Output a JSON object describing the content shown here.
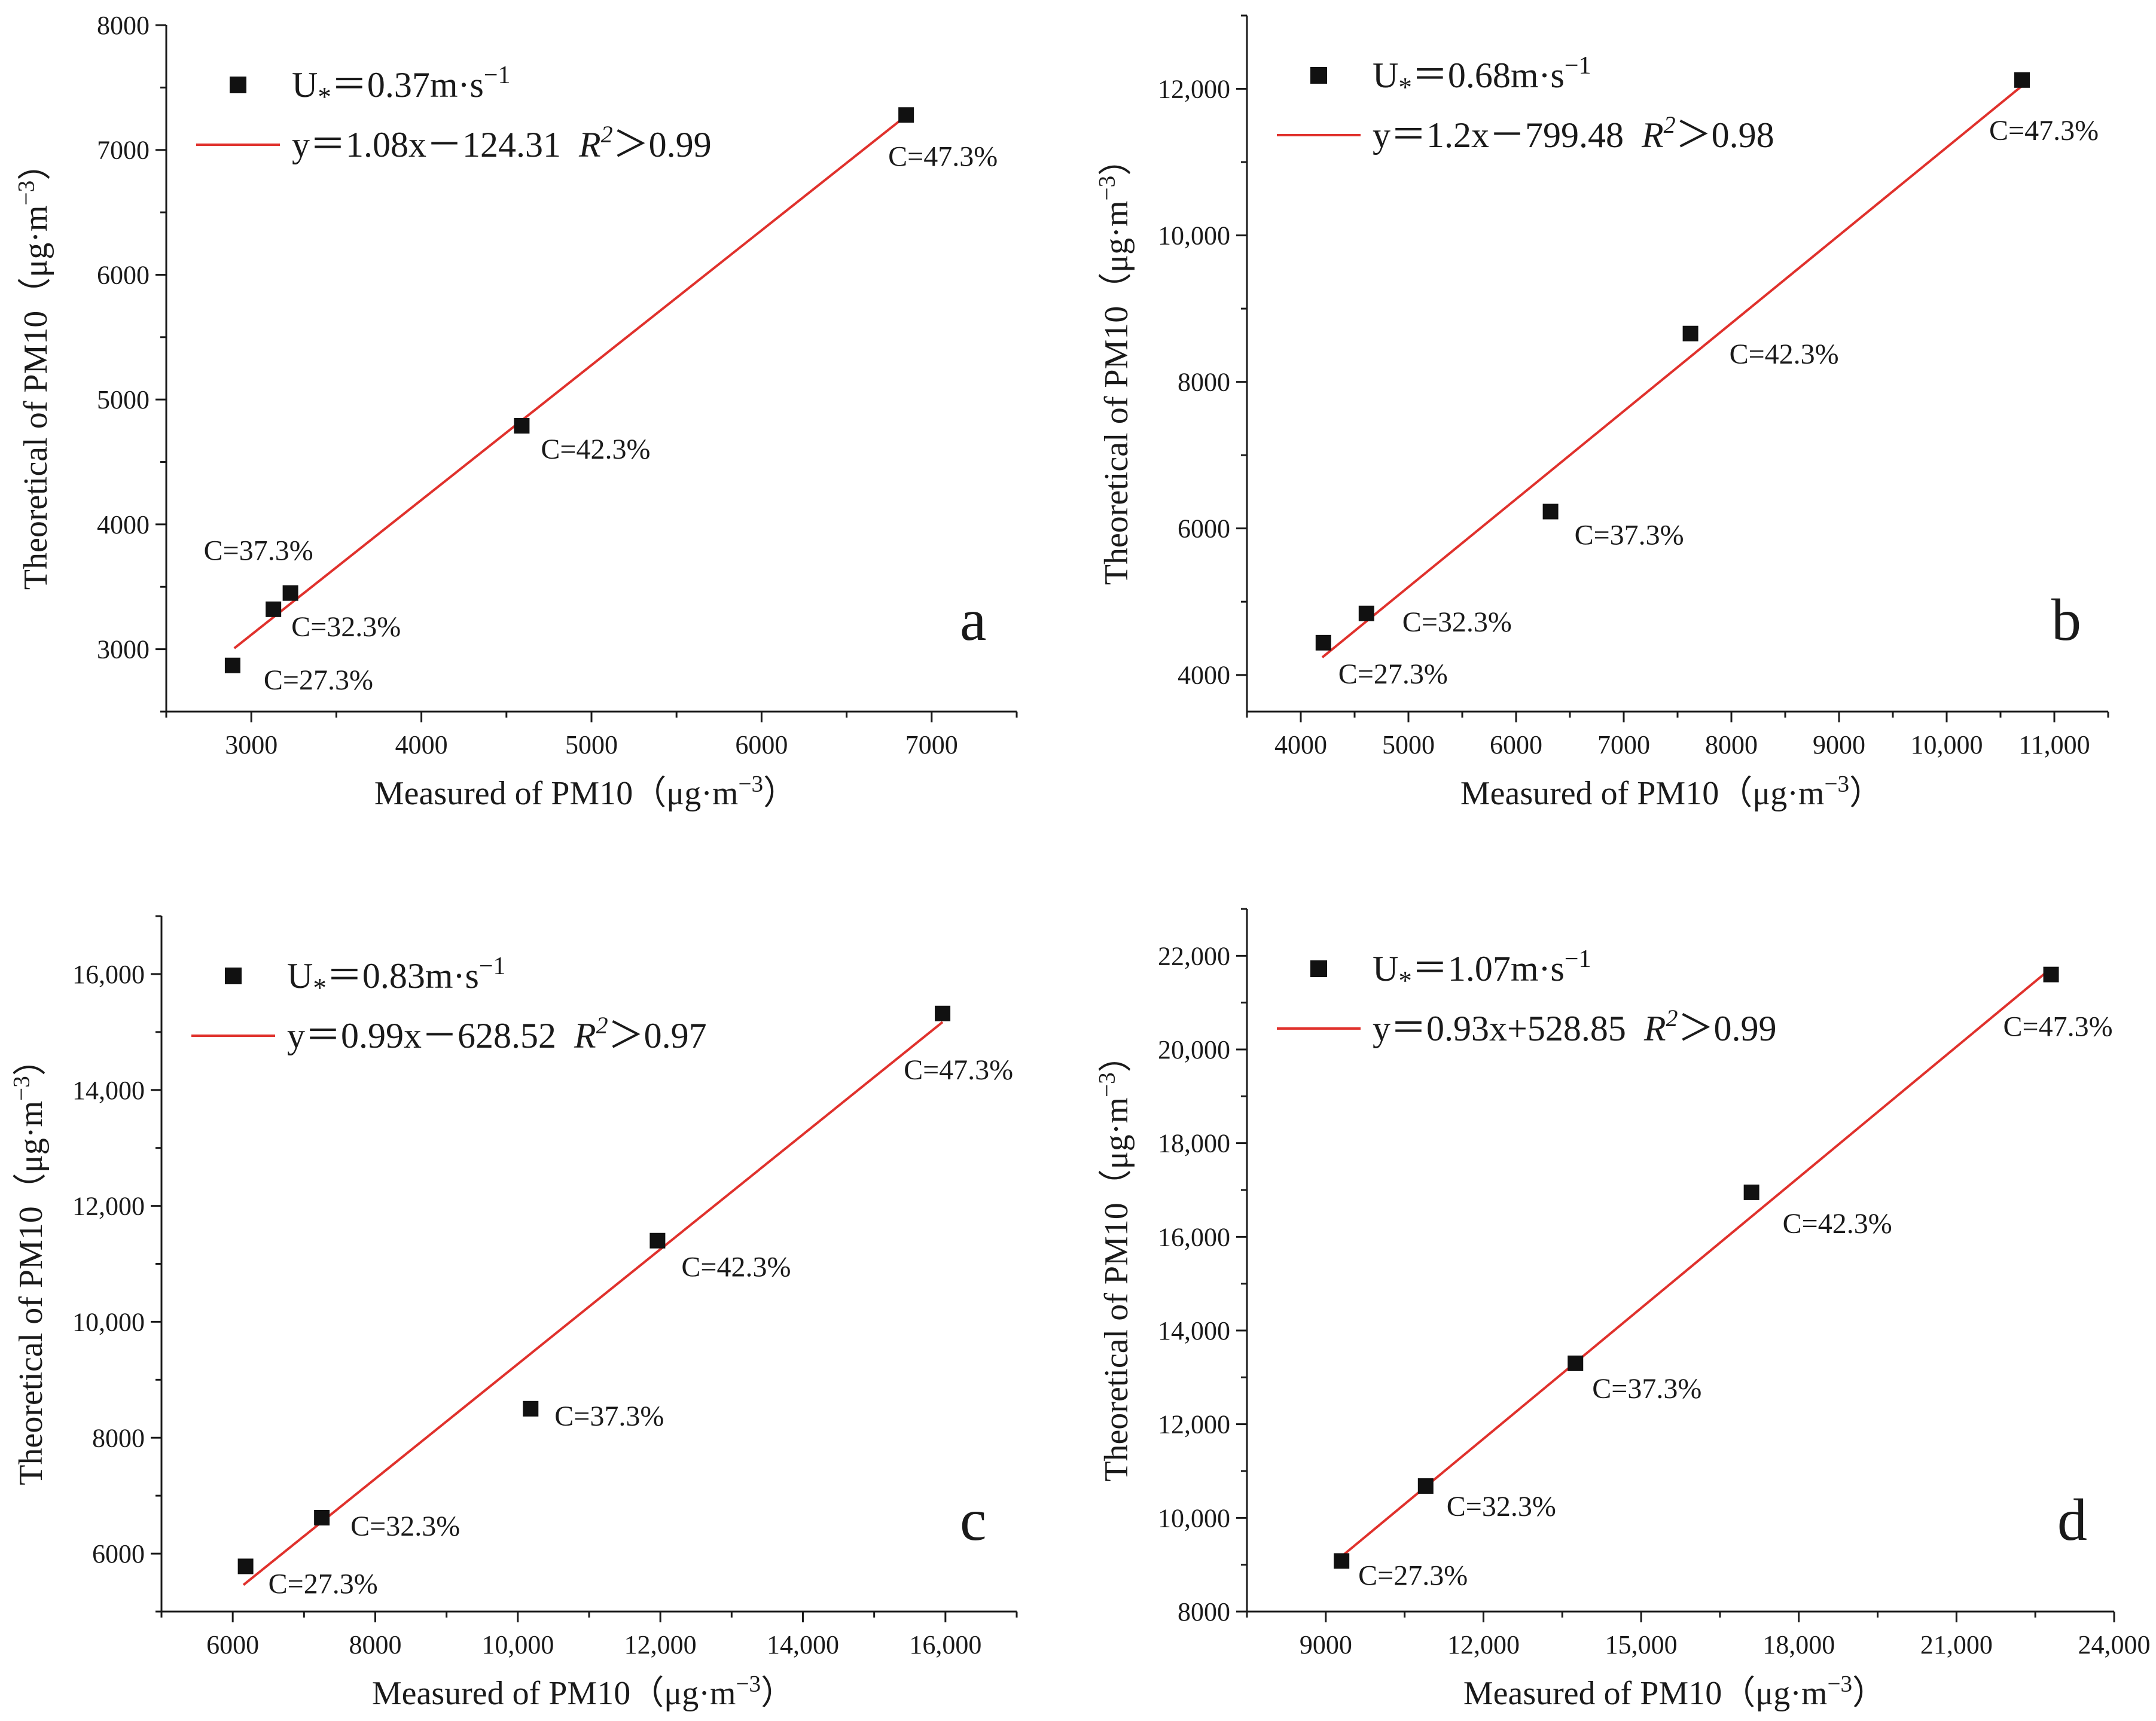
{
  "chart_data": [
    {
      "type": "scatter",
      "panel": "a",
      "xlabel": "Measured of PM10（μg·m⁻³）",
      "ylabel": "Theoretical of PM10（μg·m⁻³）",
      "xlim": [
        2500,
        7500
      ],
      "ylim": [
        2500,
        8000
      ],
      "x_ticks": [
        3000,
        4000,
        5000,
        6000,
        7000
      ],
      "x_tick_labels": [
        "3000",
        "4000",
        "5000",
        "6000",
        "7000"
      ],
      "y_ticks": [
        3000,
        4000,
        5000,
        6000,
        7000,
        8000
      ],
      "y_tick_labels": [
        "3000",
        "4000",
        "5000",
        "6000",
        "7000",
        "8000"
      ],
      "points": [
        {
          "x": 2890,
          "y": 2870,
          "label": "C=27.3%"
        },
        {
          "x": 3130,
          "y": 3320,
          "label": "C=32.3%"
        },
        {
          "x": 3230,
          "y": 3450,
          "label": "C=37.3%"
        },
        {
          "x": 4590,
          "y": 4790,
          "label": "C=42.3%"
        },
        {
          "x": 6850,
          "y": 7280,
          "label": "C=47.3%"
        }
      ],
      "fit": {
        "slope": 1.08,
        "intercept": -124.31,
        "x_range": [
          2900,
          6850
        ]
      },
      "legend": {
        "position": "top-left",
        "marker_label": "U*＝0.37m·s⁻¹",
        "line_label": "y＝1.08x－124.31",
        "r2_label": "R²＞0.99"
      }
    },
    {
      "type": "scatter",
      "panel": "b",
      "xlabel": "Measured of PM10（μg·m⁻³）",
      "ylabel": "Theoretical of PM10（μg·m⁻³）",
      "xlim": [
        3500,
        11500
      ],
      "ylim": [
        3500,
        13000
      ],
      "x_ticks": [
        4000,
        5000,
        6000,
        7000,
        8000,
        9000,
        10000,
        11000
      ],
      "x_tick_labels": [
        "4000",
        "5000",
        "6000",
        "7000",
        "8000",
        "9000",
        "10,000",
        "11,000"
      ],
      "y_ticks": [
        4000,
        6000,
        8000,
        10000,
        12000
      ],
      "y_tick_labels": [
        "4000",
        "6000",
        "8000",
        "10,000",
        "12,000"
      ],
      "points": [
        {
          "x": 4210,
          "y": 4440,
          "label": "C=27.3%"
        },
        {
          "x": 4610,
          "y": 4840,
          "label": "C=32.3%"
        },
        {
          "x": 6320,
          "y": 6230,
          "label": "C=37.3%"
        },
        {
          "x": 7620,
          "y": 8660,
          "label": "C=42.3%"
        },
        {
          "x": 10700,
          "y": 12120,
          "label": "C=47.3%"
        }
      ],
      "fit": {
        "slope": 1.2,
        "intercept": -799.48,
        "x_range": [
          4200,
          10700
        ]
      },
      "legend": {
        "position": "top-left",
        "marker_label": "U*＝0.68m·s⁻¹",
        "line_label": "y＝1.2x－799.48",
        "r2_label": "R²＞0.98"
      }
    },
    {
      "type": "scatter",
      "panel": "c",
      "xlabel": "Measured of PM10（μg·m⁻³）",
      "ylabel": "Theoretical of PM10（μg·m⁻³）",
      "xlim": [
        5000,
        17000
      ],
      "ylim": [
        5000,
        17000
      ],
      "x_ticks": [
        6000,
        8000,
        10000,
        12000,
        14000,
        16000
      ],
      "x_tick_labels": [
        "6000",
        "8000",
        "10,000",
        "12,000",
        "14,000",
        "16,000"
      ],
      "y_ticks": [
        6000,
        8000,
        10000,
        12000,
        14000,
        16000
      ],
      "y_tick_labels": [
        "6000",
        "8000",
        "10,000",
        "12,000",
        "14,000",
        "16,000"
      ],
      "points": [
        {
          "x": 6180,
          "y": 5780,
          "label": "C=27.3%"
        },
        {
          "x": 7250,
          "y": 6620,
          "label": "C=32.3%"
        },
        {
          "x": 10180,
          "y": 8500,
          "label": "C=37.3%"
        },
        {
          "x": 11960,
          "y": 11400,
          "label": "C=42.3%"
        },
        {
          "x": 15960,
          "y": 15320,
          "label": "C=47.3%"
        }
      ],
      "fit": {
        "slope": 0.99,
        "intercept": -628.52,
        "x_range": [
          6150,
          15960
        ]
      },
      "legend": {
        "position": "top-left",
        "marker_label": "U*＝0.83m·s⁻¹",
        "line_label": "y＝0.99x－628.52",
        "r2_label": "R²＞0.97"
      }
    },
    {
      "type": "scatter",
      "panel": "d",
      "xlabel": "Measured of PM10（μg·m⁻³）",
      "ylabel": "Theoretical of PM10（μg·m⁻³）",
      "xlim": [
        7500,
        24000
      ],
      "ylim": [
        8000,
        23000
      ],
      "x_ticks": [
        9000,
        12000,
        15000,
        18000,
        21000,
        24000
      ],
      "x_tick_labels": [
        "9000",
        "12,000",
        "15,000",
        "18,000",
        "21,000",
        "24,000"
      ],
      "y_ticks": [
        8000,
        10000,
        12000,
        14000,
        16000,
        18000,
        20000,
        22000
      ],
      "y_tick_labels": [
        "8000",
        "10,000",
        "12,000",
        "14,000",
        "16,000",
        "18,000",
        "20,000",
        "22,000"
      ],
      "points": [
        {
          "x": 9300,
          "y": 9080,
          "label": "C=27.3%"
        },
        {
          "x": 10900,
          "y": 10680,
          "label": "C=32.3%"
        },
        {
          "x": 13750,
          "y": 13300,
          "label": "C=37.3%"
        },
        {
          "x": 17100,
          "y": 16950,
          "label": "C=42.3%"
        },
        {
          "x": 22800,
          "y": 21600,
          "label": "C=47.3%"
        }
      ],
      "fit": {
        "slope": 0.93,
        "intercept": 528.85,
        "x_range": [
          9300,
          22800
        ]
      },
      "legend": {
        "position": "top-left",
        "marker_label": "U*＝1.07m·s⁻¹",
        "line_label": "y＝0.93x+528.85",
        "r2_label": "R²＞0.99"
      }
    }
  ]
}
